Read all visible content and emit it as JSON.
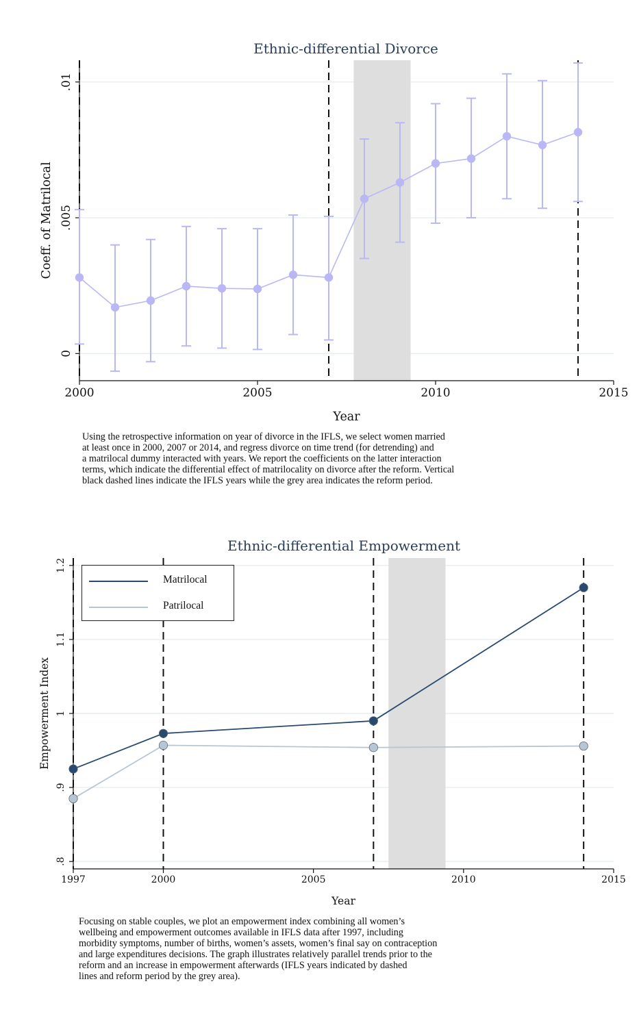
{
  "chart_data": [
    {
      "type": "line",
      "title": "Ethnic-differential Divorce",
      "xlabel": "Year",
      "ylabel": "Coeff. of Matrilocal",
      "xlim": [
        2000,
        2015
      ],
      "ylim": [
        -0.001,
        0.0108
      ],
      "x_ticks": [
        2000,
        2005,
        2010,
        2015
      ],
      "x_tick_labels": [
        "2000",
        "2005",
        "2010",
        "2015"
      ],
      "y_ticks": [
        0,
        0.005,
        0.01
      ],
      "y_tick_labels": [
        "0",
        ".005",
        ".01"
      ],
      "grid": true,
      "vertical_dashed_lines": [
        2000,
        2007,
        2014
      ],
      "shaded_region": [
        2007.7,
        2009.3
      ],
      "series": [
        {
          "x": [
            2000,
            2001,
            2002,
            2003,
            2004,
            2005,
            2006,
            2007,
            2008,
            2009,
            2010,
            2011,
            2012,
            2013,
            2014
          ],
          "values": [
            0.0028,
            0.0017,
            0.00195,
            0.00248,
            0.0024,
            0.00238,
            0.0029,
            0.0028,
            0.0057,
            0.0063,
            0.007,
            0.00718,
            0.008,
            0.00768,
            0.00815
          ],
          "lower": [
            0.00035,
            -0.00065,
            -0.0003,
            0.00028,
            0.0002,
            0.00015,
            0.0007,
            0.0005,
            0.0035,
            0.0041,
            0.0048,
            0.005,
            0.0057,
            0.00535,
            0.0056
          ],
          "upper": [
            0.0053,
            0.004,
            0.0042,
            0.00468,
            0.0046,
            0.0046,
            0.0051,
            0.00505,
            0.0079,
            0.0085,
            0.0092,
            0.0094,
            0.0103,
            0.01005,
            0.0107
          ],
          "color": "#b9b8f5"
        }
      ]
    },
    {
      "type": "line",
      "title": "Ethnic-differential Empowerment",
      "xlabel": "Year",
      "ylabel": "Empowerment Index",
      "xlim": [
        1997,
        2015
      ],
      "ylim": [
        0.79,
        1.21
      ],
      "x_ticks": [
        1997,
        2000,
        2005,
        2010,
        2015
      ],
      "x_tick_labels": [
        "1997",
        "2000",
        "2005",
        "2010",
        "2015"
      ],
      "y_ticks": [
        0.8,
        0.9,
        1.0,
        1.1,
        1.2
      ],
      "y_tick_labels": [
        ".8",
        ".9",
        "1",
        "1.1",
        "1.2"
      ],
      "grid": true,
      "vertical_dashed_lines": [
        1997,
        2000,
        2007,
        2014
      ],
      "shaded_region": [
        2007.5,
        2009.4
      ],
      "legend_position": "top-left",
      "series": [
        {
          "name": "Matrilocal",
          "x": [
            1997,
            2000,
            2007,
            2014
          ],
          "values": [
            0.925,
            0.973,
            0.99,
            1.17
          ],
          "color": "#274a6e"
        },
        {
          "name": "Patrilocal",
          "x": [
            1997,
            2000,
            2007,
            2014
          ],
          "values": [
            0.885,
            0.957,
            0.954,
            0.956
          ],
          "color": "#b7c6d3"
        }
      ]
    }
  ],
  "captions": {
    "divorce": [
      "Using the retrospective information on year of divorce in the IFLS, we select women married",
      "at least once in 2000, 2007 or 2014, and regress divorce on time trend (for detrending) and",
      "a matrilocal dummy interacted with years. We report the coefficients on the latter interaction",
      "terms, which indicate the differential effect of matrilocality on divorce after the reform. Vertical",
      "black dashed lines indicate the IFLS years while the grey area indicates the reform period."
    ],
    "empowerment": [
      "Focusing on stable couples, we plot an empowerment index combining all women’s",
      "wellbeing and empowerment outcomes available in IFLS data after 1997, including",
      "morbidity symptoms, number of births, women’s assets, women’s final say on contraception",
      "and large expenditures decisions. The graph illustrates relatively parallel trends prior to the",
      "reform and an increase in empowerment afterwards (IFLS years indicated by dashed",
      "lines and reform period by the grey area)."
    ]
  }
}
